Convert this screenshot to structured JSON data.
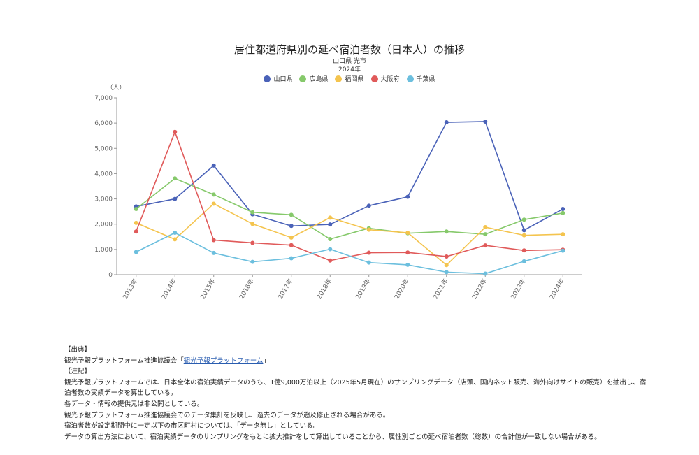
{
  "chart_data": {
    "type": "line",
    "title": "居住都道府県別の延べ宿泊者数（日本人）の推移",
    "subtitle_lines": [
      "山口県 光市",
      "2024年"
    ],
    "ylabel": "（人）",
    "ylim": [
      0,
      7000
    ],
    "yticks": [
      "0",
      "1,000",
      "2,000",
      "3,000",
      "4,000",
      "5,000",
      "6,000",
      "7,000"
    ],
    "ytick_values": [
      0,
      1000,
      2000,
      3000,
      4000,
      5000,
      6000,
      7000
    ],
    "categories": [
      "2013年",
      "2014年",
      "2015年",
      "2016年",
      "2017年",
      "2018年",
      "2019年",
      "2020年",
      "2021年",
      "2022年",
      "2023年",
      "2024年"
    ],
    "grid": false,
    "legend_position": "top",
    "series": [
      {
        "name": "山口県",
        "color": "#4a62b8",
        "values": [
          2700,
          3000,
          4320,
          2390,
          1930,
          1990,
          2730,
          3080,
          6030,
          6060,
          1760,
          2600
        ]
      },
      {
        "name": "広島県",
        "color": "#86c96b",
        "values": [
          2600,
          3810,
          3170,
          2470,
          2370,
          1410,
          1840,
          1640,
          1710,
          1600,
          2180,
          2440
        ]
      },
      {
        "name": "福岡県",
        "color": "#f4c44e",
        "values": [
          2050,
          1400,
          2810,
          2010,
          1470,
          2260,
          1780,
          1660,
          380,
          1880,
          1560,
          1600
        ]
      },
      {
        "name": "大阪府",
        "color": "#e05a5a",
        "values": [
          1710,
          5650,
          1370,
          1260,
          1170,
          560,
          870,
          880,
          720,
          1160,
          960,
          990
        ]
      },
      {
        "name": "千葉県",
        "color": "#6cbfde",
        "values": [
          900,
          1660,
          860,
          510,
          650,
          1010,
          480,
          390,
          100,
          40,
          530,
          950
        ]
      }
    ]
  },
  "notes": {
    "source_heading": "【出典】",
    "source_text": "観光予報プラットフォーム推進協議会「",
    "source_link": "観光予報プラットフォーム",
    "source_close": "」",
    "notes_heading": "【注記】",
    "lines": [
      "観光予報プラットフォームでは、日本全体の宿泊実績データのうち、1億9,000万泊以上（2025年5月現在）のサンプリングデータ（店頭、国内ネット販売、海外向けサイトの販売）を抽出し、宿泊者数の実績データを算出している。",
      "各データ・情報の提供元は非公開としている。",
      "観光予報プラットフォーム推進協議会でのデータ集計を反映し、過去のデータが遡及修正される場合がある。",
      "宿泊者数が設定期間中に一定以下の市区町村については、「データ無し」としている。",
      "データの算出方法において、宿泊実績データのサンプリングをもとに拡大推計をして算出していることから、属性別ごとの延べ宿泊者数（総数）の合計値が一致しない場合がある。"
    ]
  }
}
